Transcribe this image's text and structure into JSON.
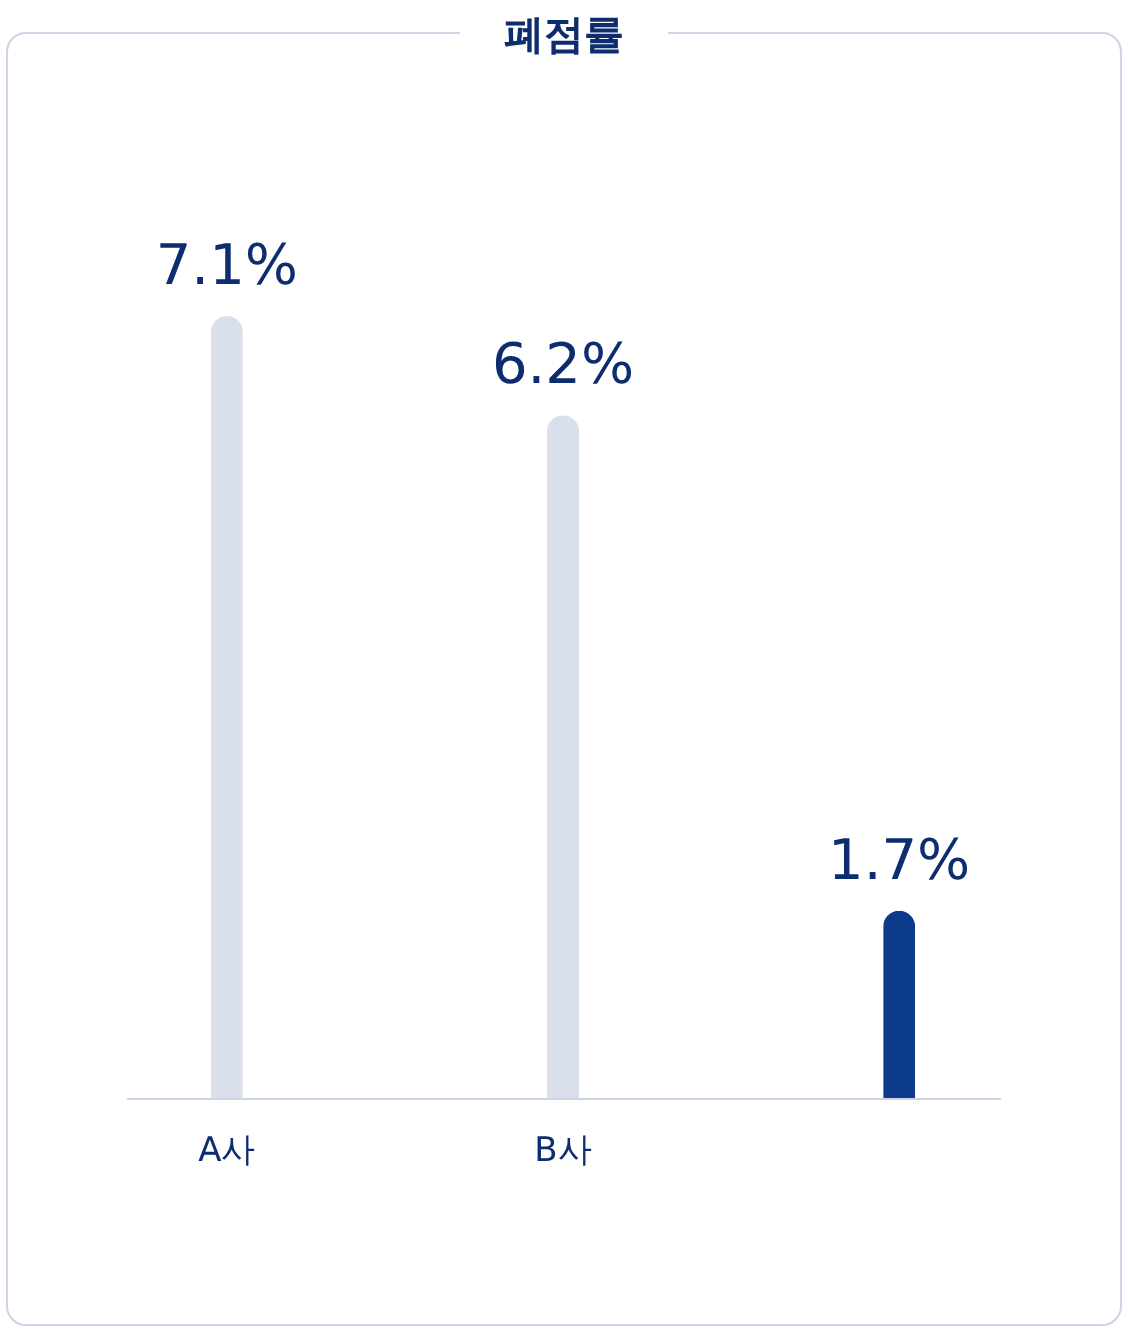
{
  "chart_data": {
    "type": "bar",
    "title": "폐점률",
    "categories": [
      "A사",
      "B사",
      null
    ],
    "values": [
      7.1,
      6.2,
      1.7
    ],
    "colors": [
      "#d9dfeb",
      "#d9dfeb",
      "#0b3a8a"
    ],
    "value_labels": [
      "7.1%",
      "6.2%",
      "1.7%"
    ]
  }
}
